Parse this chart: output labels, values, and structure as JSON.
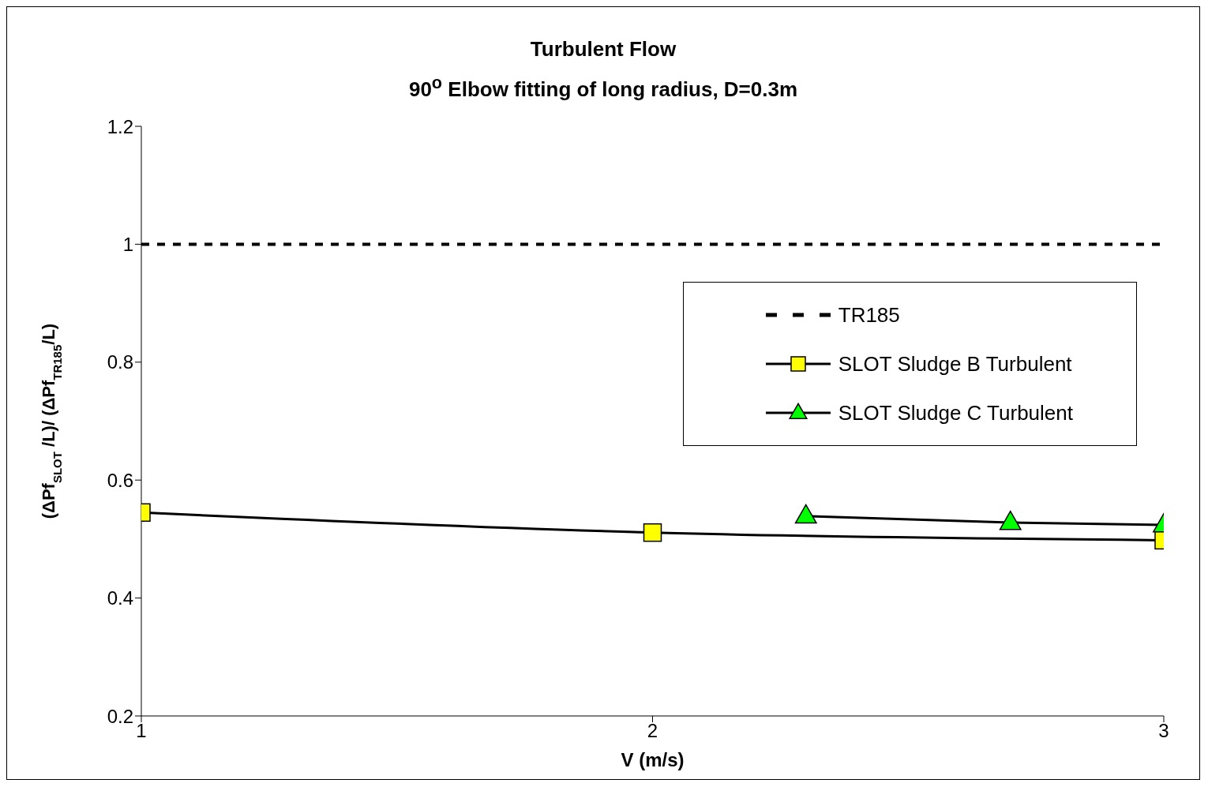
{
  "chart_data": {
    "type": "line",
    "title": "Turbulent Flow",
    "subtitle": "90$^{o}$ Elbow fitting of long radius, D=0.3m",
    "xlabel": "V (m/s)",
    "ylabel": "(ΔPf$_{SLOT}$ /L)/ (ΔPf$_{TR185}$/L)",
    "xlim": [
      1,
      3
    ],
    "xticks": [
      1,
      2,
      3
    ],
    "ylim": [
      0.2,
      1.2
    ],
    "yticks": [
      0.2,
      0.4,
      0.6,
      0.8,
      1,
      1.2
    ],
    "grid": false,
    "legend": "top right",
    "series": [
      {
        "name": "TR185",
        "color": "#000000",
        "x": [
          1,
          3
        ],
        "values": [
          1,
          1
        ],
        "marker": "none",
        "line_style": "dashed"
      },
      {
        "name": "SLOT Sludge B Turbulent",
        "color": "#ffff00",
        "x": [
          1,
          2,
          3
        ],
        "values": [
          0.545,
          0.511,
          0.498
        ],
        "marker": "square",
        "line_style": "solid"
      },
      {
        "name": "SLOT Sludge C Turbulent",
        "color": "#00ff00",
        "x": [
          2.3,
          2.7,
          3
        ],
        "values": [
          0.539,
          0.528,
          0.524
        ],
        "marker": "triangle",
        "line_style": "solid"
      }
    ]
  }
}
